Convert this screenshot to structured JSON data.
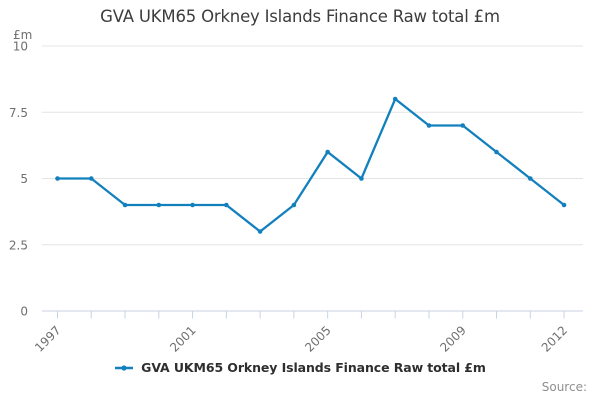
{
  "title": "GVA UKM65 Orkney Islands Finance Raw total £m",
  "unit_label": "£m",
  "legend": {
    "label": "GVA UKM65 Orkney Islands Finance Raw total £m"
  },
  "source": {
    "label": "Source:"
  },
  "colors": {
    "line": "#1380be",
    "grid": "#e4e4e4",
    "axis": "#c8d3e3",
    "tick_text": "#6f6f6f",
    "title_text": "#3d3d3d",
    "legend_text": "#2e2e2e",
    "source_text": "#8f8f8f"
  },
  "chart_data": {
    "type": "line",
    "title": "GVA UKM65 Orkney Islands Finance Raw total £m",
    "unit_label": "£m",
    "xlabel": "",
    "ylabel": "£m",
    "x": [
      1997,
      1998,
      1999,
      2000,
      2001,
      2002,
      2003,
      2004,
      2005,
      2006,
      2007,
      2008,
      2009,
      2010,
      2011,
      2012
    ],
    "series": [
      {
        "name": "GVA UKM65 Orkney Islands Finance Raw total £m",
        "values": [
          5,
          5,
          4,
          4,
          4,
          4,
          3,
          4,
          6,
          5,
          8,
          7,
          7,
          6,
          5,
          4
        ]
      }
    ],
    "ylim": [
      0,
      10
    ],
    "yticks": [
      0,
      2.5,
      5,
      7.5,
      10
    ],
    "xticks_labeled": [
      1997,
      2001,
      2005,
      2009,
      2012
    ],
    "grid": true,
    "legend_position": "bottom",
    "line_color": "#1380be",
    "marker": "circle"
  }
}
